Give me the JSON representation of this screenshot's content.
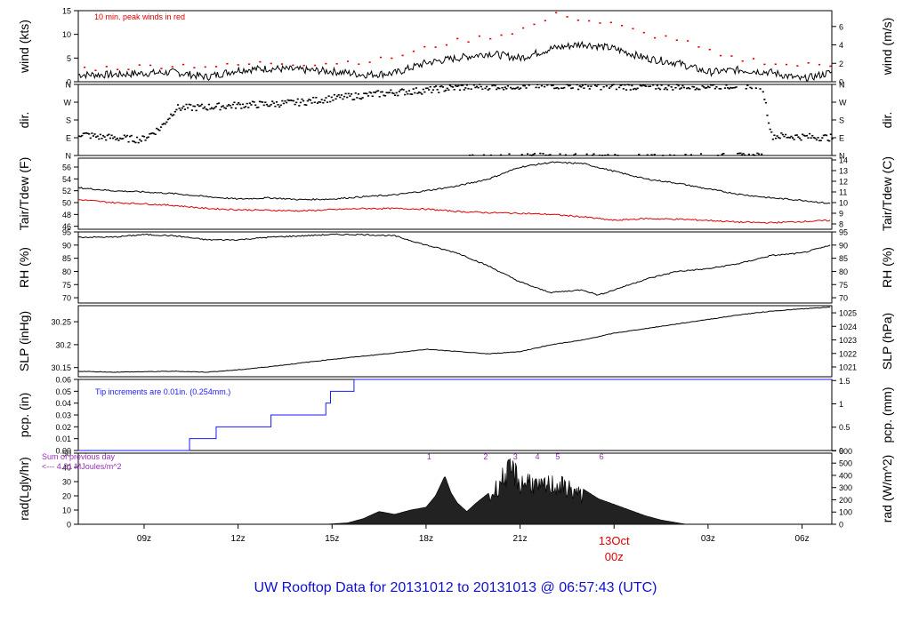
{
  "title_line": "UW Rooftop Data for 20131012  to  20131013 @ 06:57:43  (UTC)",
  "colors": {
    "black": "#000000",
    "red": "#e00000",
    "blue": "#1a1aff",
    "purple": "#9a30b8",
    "title": "#1010d0"
  },
  "x_axis": {
    "ticks": [
      {
        "hour": 9,
        "label": "09z"
      },
      {
        "hour": 12,
        "label": "12z"
      },
      {
        "hour": 15,
        "label": "15z"
      },
      {
        "hour": 18,
        "label": "18z"
      },
      {
        "hour": 21,
        "label": "21z"
      },
      {
        "hour": 27,
        "label": "03z"
      },
      {
        "hour": 30,
        "label": "06z"
      }
    ],
    "date_marker": {
      "hour": 24,
      "date_label": "13Oct",
      "time_label": "00z"
    },
    "range_hours": [
      6.9,
      30.95
    ]
  },
  "chart_data": [
    {
      "type": "line",
      "name": "wind",
      "ylabel_left": "wind (kts)",
      "ylabel_right": "wind (m/s)",
      "ylim": [
        0,
        15
      ],
      "yticks": [
        0,
        5,
        10,
        15
      ],
      "right_ticks": [
        {
          "value": 0,
          "label": "0"
        },
        {
          "value": 3.888,
          "label": "2"
        },
        {
          "value": 7.776,
          "label": "4"
        },
        {
          "value": 11.66,
          "label": "6"
        }
      ],
      "annotation": "10 min. peak winds in red",
      "series": [
        {
          "name": "wind speed",
          "x": [
            6.9,
            8,
            9,
            10,
            11,
            12,
            13,
            14,
            15,
            16,
            17,
            18,
            19,
            20,
            21,
            22,
            23,
            24,
            25,
            26,
            27,
            28,
            29,
            30,
            30.95
          ],
          "values": [
            1.5,
            1.5,
            1.8,
            2,
            1,
            2.5,
            2.8,
            2.5,
            2.2,
            1.5,
            1.8,
            4,
            5,
            6,
            5,
            7,
            8,
            7,
            5,
            4,
            2,
            2.5,
            2,
            0.5,
            2
          ]
        },
        {
          "name": "10 min peak",
          "x": [
            7.2,
            8.5,
            10,
            11.5,
            13,
            14.5,
            16.5,
            17.5,
            18.5,
            19.5,
            20.5,
            21.5,
            22.3,
            23,
            24,
            25,
            26,
            27.5,
            28.5,
            29.5,
            30.6
          ],
          "values": [
            2.8,
            3,
            3.5,
            3.2,
            4,
            3.8,
            4.5,
            6,
            8,
            9,
            10,
            12,
            14.5,
            13,
            12,
            10,
            9,
            5,
            4.5,
            3.5,
            3.5
          ]
        }
      ]
    },
    {
      "type": "scatter",
      "name": "direction",
      "ylabel_left": "dir.",
      "ylabel_right": "dir.",
      "yticks": [
        {
          "value": 0,
          "label": "N"
        },
        {
          "value": 90,
          "label": "E"
        },
        {
          "value": 180,
          "label": "S"
        },
        {
          "value": 270,
          "label": "W"
        },
        {
          "value": 360,
          "label": "N"
        }
      ],
      "ylim": [
        0,
        360
      ],
      "series": [
        {
          "name": "wind direction",
          "x": [
            6.9,
            7.5,
            8.5,
            8.9,
            9.5,
            10,
            11,
            12,
            13,
            14,
            15,
            16,
            17,
            18,
            19,
            20,
            21,
            22,
            23,
            24,
            25,
            26,
            27,
            28,
            28.7,
            29,
            30,
            30.95
          ],
          "values": [
            110,
            95,
            85,
            80,
            140,
            240,
            245,
            255,
            260,
            270,
            290,
            305,
            320,
            330,
            345,
            350,
            352,
            355,
            352,
            350,
            348,
            350,
            352,
            355,
            355,
            100,
            95,
            90
          ]
        }
      ]
    },
    {
      "type": "line",
      "name": "temperature",
      "ylabel_left": "Tair/Tdew (F)",
      "ylabel_right": "Tair/Tdew (C)",
      "ylim": [
        45.5,
        57.5
      ],
      "yticks": [
        46,
        48,
        50,
        52,
        54,
        56
      ],
      "right_ticks": [
        {
          "value": 46.4,
          "label": "8"
        },
        {
          "value": 48.2,
          "label": "9"
        },
        {
          "value": 50,
          "label": "10"
        },
        {
          "value": 51.8,
          "label": "11"
        },
        {
          "value": 53.6,
          "label": "12"
        },
        {
          "value": 55.4,
          "label": "13"
        },
        {
          "value": 57.2,
          "label": "14"
        }
      ],
      "series": [
        {
          "name": "Tair",
          "color": "black",
          "x": [
            6.9,
            8,
            9,
            10,
            11,
            12,
            13,
            14,
            15,
            16,
            17,
            18,
            19,
            20,
            21,
            22,
            23,
            24,
            25,
            26,
            27,
            28,
            29,
            30,
            30.95
          ],
          "values": [
            52.5,
            52,
            51.8,
            51.5,
            51,
            50.6,
            50.8,
            50.5,
            50.6,
            51,
            51.3,
            52,
            52.8,
            54,
            56,
            56.8,
            56.6,
            55.3,
            54,
            53.3,
            52.3,
            51.4,
            50.8,
            50.4,
            49.8
          ]
        },
        {
          "name": "Tdew",
          "color": "red",
          "x": [
            6.9,
            8,
            9,
            10,
            11,
            12,
            13,
            14,
            15,
            16,
            17,
            18,
            19,
            20,
            21,
            22,
            23,
            24,
            25,
            26,
            27,
            28,
            29,
            30,
            30.95
          ],
          "values": [
            50.5,
            50,
            49.8,
            49.5,
            49,
            48.8,
            48.7,
            48.6,
            48.8,
            49,
            49,
            48.9,
            48.5,
            48.3,
            48.2,
            48,
            47.6,
            47,
            47.3,
            47.2,
            47,
            46.7,
            46.6,
            46.8,
            47
          ]
        }
      ]
    },
    {
      "type": "line",
      "name": "humidity",
      "ylabel_left": "RH (%)",
      "ylabel_right": "RH (%)",
      "ylim": [
        68,
        95
      ],
      "yticks": [
        70,
        75,
        80,
        85,
        90,
        95
      ],
      "series": [
        {
          "name": "RH",
          "x": [
            6.9,
            8,
            9,
            10,
            11,
            12,
            13,
            14,
            15,
            16,
            17,
            18,
            19,
            20,
            21,
            21.7,
            22,
            23,
            23.5,
            24,
            25,
            26,
            27,
            28,
            29,
            30,
            30.95
          ],
          "values": [
            93,
            93,
            94,
            93.5,
            92,
            92,
            93,
            93.5,
            94,
            94,
            93.5,
            90,
            87,
            82,
            76,
            73,
            72,
            73,
            71,
            73,
            77,
            80,
            81,
            83,
            86,
            87,
            90
          ]
        }
      ]
    },
    {
      "type": "line",
      "name": "pressure",
      "ylabel_left": "SLP (inHg)",
      "ylabel_right": "SLP (hPa)",
      "ylim": [
        30.13,
        30.285
      ],
      "yticks": [
        30.15,
        30.2,
        30.25
      ],
      "right_ticks": [
        {
          "value": 30.1513,
          "label": "1021"
        },
        {
          "value": 30.1808,
          "label": "1022"
        },
        {
          "value": 30.2103,
          "label": "1023"
        },
        {
          "value": 30.2399,
          "label": "1024"
        },
        {
          "value": 30.2694,
          "label": "1025"
        }
      ],
      "series": [
        {
          "name": "SLP",
          "x": [
            6.9,
            8,
            10,
            11,
            12,
            13,
            14,
            15,
            16,
            17,
            18,
            19,
            20,
            21,
            22,
            23,
            24,
            25,
            26,
            27,
            28,
            29,
            30,
            30.95
          ],
          "values": [
            30.142,
            30.14,
            30.142,
            30.14,
            30.145,
            30.152,
            30.16,
            30.168,
            30.175,
            30.182,
            30.19,
            30.185,
            30.18,
            30.185,
            30.2,
            30.21,
            30.225,
            30.235,
            30.245,
            30.255,
            30.265,
            30.273,
            30.278,
            30.282
          ]
        }
      ]
    },
    {
      "type": "line",
      "name": "precipitation",
      "ylabel_left": "pcp. (in)",
      "ylabel_right": "pcp. (mm)",
      "ylim": [
        0,
        0.06
      ],
      "yticks": [
        0,
        0.01,
        0.02,
        0.03,
        0.04,
        0.05,
        0.06
      ],
      "ytick_labels": [
        "0.00",
        "0.01",
        "0.02",
        "0.03",
        "0.04",
        "0.05",
        "0.06"
      ],
      "right_ticks": [
        {
          "value": 0,
          "label": "0"
        },
        {
          "value": 0.01969,
          "label": "0.5"
        },
        {
          "value": 0.03937,
          "label": "1"
        },
        {
          "value": 0.05906,
          "label": "1.5"
        }
      ],
      "annotation": "Tip increments are 0.01in. (0.254mm.)",
      "series": [
        {
          "name": "accumulated precip",
          "step": true,
          "x": [
            6.9,
            10.45,
            11.3,
            13.05,
            14.8,
            14.95,
            15.7,
            30.95
          ],
          "values": [
            0,
            0.01,
            0.02,
            0.03,
            0.04,
            0.05,
            0.06,
            0.06
          ]
        }
      ]
    },
    {
      "type": "area",
      "name": "radiation",
      "ylabel_left": "rad(Lgly/hr)",
      "ylabel_right": "rad (W/m^2)",
      "ylim": [
        0,
        50
      ],
      "yticks": [
        0,
        10,
        20,
        30,
        40,
        50
      ],
      "right_ticks": [
        {
          "value": 0,
          "label": "0"
        },
        {
          "value": 8.6,
          "label": "100"
        },
        {
          "value": 17.2,
          "label": "200"
        },
        {
          "value": 25.8,
          "label": "300"
        },
        {
          "value": 34.4,
          "label": "400"
        },
        {
          "value": 43,
          "label": "500"
        },
        {
          "value": 51.6,
          "label": "600"
        }
      ],
      "annotation_line1": "Sum of previous day",
      "annotation_line2": "<--- 4.21 MJoules/m^2",
      "event_markers": [
        {
          "hour": 18.1,
          "label": "1"
        },
        {
          "hour": 19.9,
          "label": "2"
        },
        {
          "hour": 20.85,
          "label": "3"
        },
        {
          "hour": 21.55,
          "label": "4"
        },
        {
          "hour": 22.2,
          "label": "5"
        },
        {
          "hour": 23.6,
          "label": "6"
        }
      ],
      "series": [
        {
          "name": "solar radiation",
          "x": [
            14.8,
            15.5,
            16,
            16.5,
            17,
            17.5,
            18,
            18.3,
            18.6,
            18.8,
            19,
            19.3,
            19.6,
            20,
            20.5,
            20.8,
            21,
            21.3,
            21.6,
            22,
            22.5,
            23,
            23.5,
            24,
            24.5,
            25,
            25.5,
            26.3
          ],
          "values": [
            0,
            1,
            4,
            9,
            7,
            10,
            12,
            20,
            34,
            22,
            15,
            9,
            15,
            22,
            44,
            48,
            36,
            40,
            32,
            36,
            33,
            25,
            18,
            14,
            10,
            6,
            3,
            0
          ]
        }
      ]
    }
  ]
}
